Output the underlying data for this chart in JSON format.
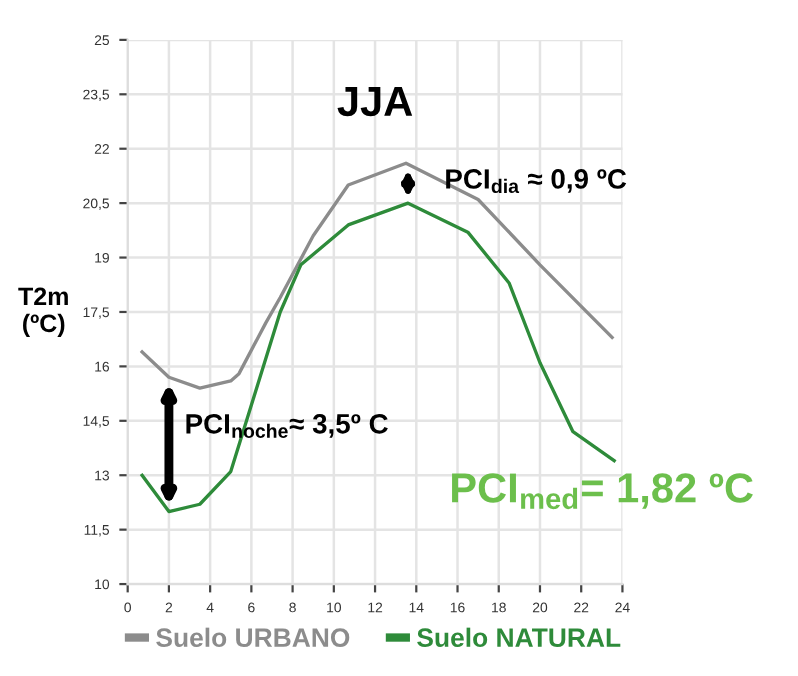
{
  "chart_data": {
    "type": "line",
    "title": "JJA",
    "ylabel": "T2m\n(ºC)",
    "x": [
      0.7,
      2,
      3.5,
      5,
      5.4,
      6.7,
      7.4,
      9,
      10.7,
      13.5,
      17,
      20,
      23.5
    ],
    "series": [
      {
        "name": "Suelo URBANO",
        "color": "#8c8c8c",
        "values": [
          16.4,
          15.7,
          15.4,
          15.6,
          15.8,
          17.2,
          17.9,
          19.6,
          21.0,
          21.6,
          20.6,
          18.8,
          16.8
        ]
      },
      {
        "name": "Suelo NATURAL",
        "color": "#2e8b3a",
        "x": [
          0.7,
          2,
          3.5,
          5,
          7.4,
          8.4,
          10.7,
          13.6,
          16.5,
          18.5,
          20,
          21.6,
          23.6
        ],
        "values": [
          13.0,
          12.0,
          12.2,
          13.1,
          17.5,
          18.8,
          19.9,
          20.5,
          19.7,
          18.3,
          16.1,
          14.2,
          13.4
        ]
      }
    ],
    "xlim": [
      0,
      24
    ],
    "xticks": [
      0,
      2,
      4,
      6,
      8,
      10,
      12,
      14,
      16,
      18,
      20,
      22,
      24
    ],
    "ylim": [
      10,
      25
    ],
    "yticks": [
      10,
      {
        "value": 11.5,
        "label": "11,5"
      },
      13,
      {
        "value": 14.5,
        "label": "14,5"
      },
      16,
      {
        "value": 17.5,
        "label": "17,5"
      },
      19,
      {
        "value": 20.5,
        "label": "20,5"
      },
      22,
      {
        "value": 23.5,
        "label": "23,5"
      },
      25
    ],
    "grid": true,
    "legend": "bottom",
    "marker": "none",
    "line_style": "solid",
    "annotations": [
      {
        "text": "PCI$_{dia}$ ≈ 0,9 ºC",
        "x": 13.6,
        "y": 20.5
      },
      {
        "text": "PCI$_{noche}$≈ 3,5º C",
        "x": 2,
        "y": 12.0
      },
      "PCI$_{med}$= 1,82 ºC"
    ]
  }
}
